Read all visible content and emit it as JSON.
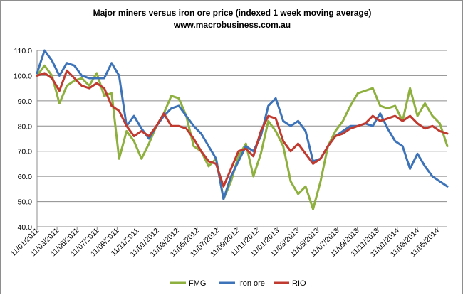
{
  "chart_data": {
    "type": "line",
    "title": "Major miners versus iron ore price (indexed 1 week moving average)",
    "subtitle": "www.macrobusiness.com.au",
    "xlabel": "",
    "ylabel": "",
    "ylim": [
      40,
      110
    ],
    "yticks": [
      40,
      50,
      60,
      70,
      80,
      90,
      100,
      110
    ],
    "ytick_labels": [
      "40.0",
      "50.0",
      "60.0",
      "70.0",
      "80.0",
      "90.0",
      "100.0",
      "110.0"
    ],
    "grid": "horizontal",
    "legend_position": "bottom",
    "x_range": [
      "2011-01-11",
      "2014-06-11"
    ],
    "xtick_labels": [
      "11/01/2011",
      "11/03/2011",
      "11/05/2011",
      "11/07/2011",
      "11/09/2011",
      "11/11/2011",
      "11/01/2012",
      "11/03/2012",
      "11/05/2012",
      "11/07/2012",
      "11/09/2012",
      "11/11/2012",
      "11/01/2013",
      "11/03/2013",
      "11/05/2013",
      "11/07/2013",
      "11/09/2013",
      "11/11/2013",
      "11/01/2014",
      "11/03/2014",
      "11/05/2014"
    ],
    "x_months_from_start": [
      0,
      2,
      4,
      6,
      8,
      10,
      12,
      14,
      16,
      18,
      20,
      22,
      24,
      26,
      28,
      30,
      32,
      34,
      36,
      38,
      40,
      41
    ],
    "series": [
      {
        "name": "FMG",
        "color": "#8eb03e",
        "values": [
          100,
          104,
          100,
          89,
          96,
          98,
          99,
          96,
          101,
          92,
          93,
          67,
          78,
          74,
          67,
          73,
          80,
          85,
          92,
          91,
          84,
          72,
          70,
          64,
          67,
          51,
          58,
          68,
          73,
          60,
          69,
          82,
          78,
          72,
          58,
          53,
          56,
          47,
          58,
          72,
          78,
          82,
          88,
          93,
          94,
          95,
          88,
          87,
          88,
          82,
          95,
          84,
          89,
          84,
          81,
          72
        ]
      },
      {
        "name": "Iron ore",
        "color": "#3d73b8",
        "values": [
          101,
          110,
          106,
          100,
          105,
          104,
          100,
          99,
          99,
          99,
          105,
          100,
          80,
          84,
          79,
          75,
          80,
          84,
          87,
          88,
          84,
          80,
          77,
          72,
          67,
          51,
          60,
          66,
          72,
          70,
          76,
          88,
          91,
          82,
          80,
          82,
          78,
          66,
          67,
          72,
          76,
          78,
          80,
          80,
          81,
          80,
          85,
          79,
          74,
          72,
          63,
          69,
          64,
          60,
          58,
          56
        ]
      },
      {
        "name": "RIO",
        "color": "#c03a30",
        "values": [
          100,
          101,
          99,
          94,
          102,
          99,
          96,
          95,
          97,
          95,
          88,
          86,
          80,
          76,
          78,
          76,
          80,
          85,
          80,
          80,
          79,
          75,
          70,
          66,
          65,
          56,
          63,
          70,
          71,
          68,
          78,
          84,
          83,
          74,
          70,
          73,
          69,
          65,
          67,
          72,
          76,
          77,
          79,
          80,
          81,
          84,
          82,
          83,
          84,
          82,
          84,
          81,
          79,
          80,
          78,
          77
        ]
      }
    ]
  }
}
